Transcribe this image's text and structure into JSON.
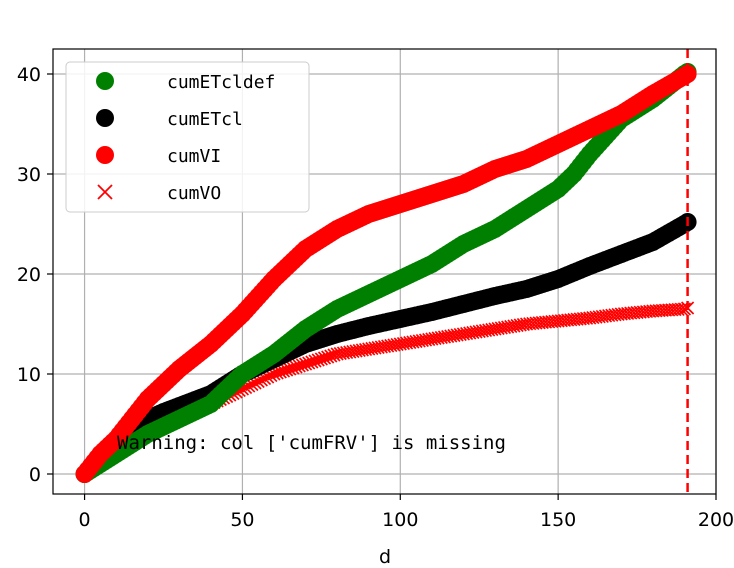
{
  "chart_data": {
    "type": "scatter",
    "title": "",
    "xlabel": "d",
    "ylabel": "",
    "xlim": [
      -10,
      200
    ],
    "ylim": [
      -2,
      42.5
    ],
    "x_ticks": [
      0,
      50,
      100,
      150,
      200
    ],
    "y_ticks": [
      0,
      10,
      20,
      30,
      40
    ],
    "grid": true,
    "legend_position": "upper-left",
    "annotation": "Warning: col ['cumFRV'] is missing",
    "vline": {
      "x": 191,
      "color": "#ff0000",
      "style": "dashed"
    },
    "series": [
      {
        "name": "cumETcldef",
        "color": "#008000",
        "marker": "circle",
        "x": [
          0,
          5,
          10,
          15,
          20,
          30,
          40,
          50,
          60,
          70,
          75,
          80,
          90,
          100,
          110,
          120,
          130,
          140,
          150,
          155,
          160,
          170,
          180,
          190,
          191
        ],
        "y": [
          0,
          1,
          2,
          3,
          4,
          5.5,
          7,
          10,
          12,
          14.5,
          15.5,
          16.5,
          18,
          19.5,
          21,
          23,
          24.5,
          26.5,
          28.5,
          30,
          32,
          35.5,
          37.5,
          40,
          40.2
        ]
      },
      {
        "name": "cumETcl",
        "color": "#000000",
        "marker": "circle",
        "x": [
          0,
          5,
          10,
          15,
          20,
          25,
          30,
          40,
          50,
          60,
          70,
          80,
          90,
          100,
          110,
          120,
          130,
          140,
          150,
          160,
          170,
          180,
          190,
          191
        ],
        "y": [
          0,
          1.5,
          3,
          4.5,
          5.5,
          6.2,
          6.8,
          8,
          10,
          11.5,
          13,
          14,
          14.8,
          15.5,
          16.2,
          17,
          17.8,
          18.5,
          19.5,
          20.8,
          22,
          23.2,
          25,
          25.2
        ]
      },
      {
        "name": "cumVI",
        "color": "#ff0000",
        "marker": "circle",
        "x": [
          0,
          5,
          10,
          15,
          20,
          30,
          40,
          50,
          60,
          70,
          75,
          80,
          90,
          100,
          110,
          120,
          130,
          140,
          150,
          160,
          170,
          180,
          190,
          191
        ],
        "y": [
          0,
          2,
          3.5,
          5.5,
          7.5,
          10.5,
          13,
          16,
          19.5,
          22.5,
          23.5,
          24.5,
          26,
          27,
          28,
          29,
          30.5,
          31.5,
          33,
          34.5,
          36,
          38,
          39.8,
          40
        ]
      },
      {
        "name": "cumVO",
        "color": "#ff0000",
        "marker": "x",
        "x": [
          0,
          5,
          10,
          15,
          20,
          30,
          40,
          50,
          60,
          70,
          80,
          90,
          100,
          110,
          120,
          130,
          140,
          150,
          160,
          170,
          180,
          190,
          191
        ],
        "y": [
          0,
          1.5,
          2.5,
          3.5,
          4.2,
          5.5,
          7,
          8.5,
          10,
          11,
          12,
          12.5,
          13,
          13.5,
          14,
          14.5,
          15,
          15.3,
          15.6,
          16,
          16.3,
          16.5,
          16.6
        ]
      }
    ]
  }
}
